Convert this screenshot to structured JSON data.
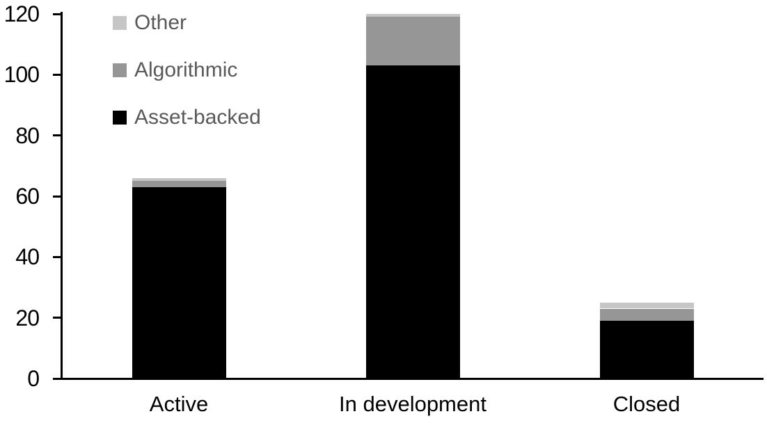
{
  "chart_data": {
    "type": "bar",
    "stacked": true,
    "title": "",
    "xlabel": "",
    "ylabel": "",
    "categories": [
      "Active",
      "In development",
      "Closed"
    ],
    "series": [
      {
        "name": "Asset-backed",
        "color": "#000000",
        "values": [
          63,
          103,
          19
        ]
      },
      {
        "name": "Algorithmic",
        "color": "#969696",
        "values": [
          2,
          16,
          4
        ]
      },
      {
        "name": "Other",
        "color": "#c6c6c6",
        "values": [
          1,
          1,
          2
        ]
      }
    ],
    "ylim": [
      0,
      120
    ],
    "yticks": [
      0,
      20,
      40,
      60,
      80,
      100,
      120
    ],
    "grid": false,
    "legend": {
      "position": "top-left",
      "order": [
        "Other",
        "Algorithmic",
        "Asset-backed"
      ],
      "text_color": "#595959"
    }
  },
  "styles": {
    "background": "#ffffff",
    "axis_color": "#000000",
    "tick_label_color": "#000000",
    "category_label_color": "#000000"
  }
}
